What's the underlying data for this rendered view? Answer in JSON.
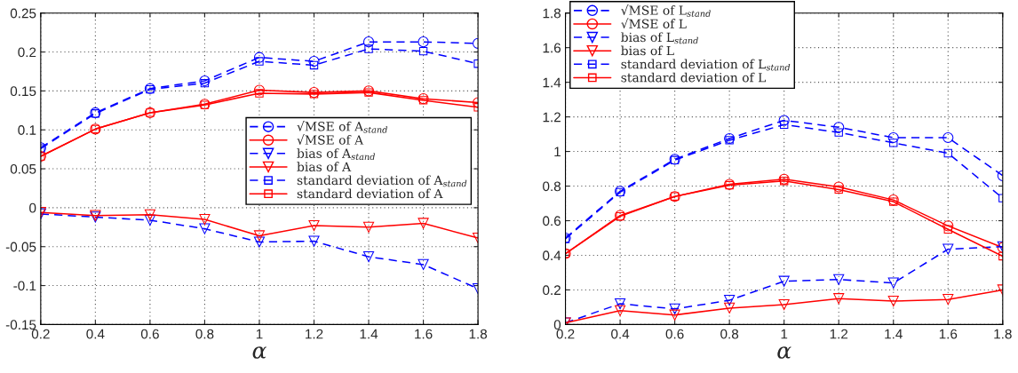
{
  "chart_data": [
    {
      "type": "line",
      "xlabel": "α",
      "x": [
        0.2,
        0.4,
        0.6,
        0.8,
        1,
        1.2,
        1.4,
        1.6,
        1.8
      ],
      "xlim": [
        0.2,
        1.8
      ],
      "xticks": [
        0.2,
        0.4,
        0.6,
        0.8,
        1,
        1.2,
        1.4,
        1.6,
        1.8
      ],
      "ylim": [
        -0.15,
        0.25
      ],
      "yticks": [
        -0.15,
        -0.1,
        -0.05,
        0,
        0.05,
        0.1,
        0.15,
        0.2,
        0.25
      ],
      "grid": true,
      "legend": "center right",
      "series": [
        {
          "name": "√MSE of A$_{stand}$",
          "color": "#0000ff",
          "marker": "circle",
          "line_style": "dashed",
          "values": [
            0.077,
            0.122,
            0.153,
            0.163,
            0.193,
            0.188,
            0.213,
            0.213,
            0.211
          ]
        },
        {
          "name": "√MSE of A",
          "color": "#ff0000",
          "marker": "circle",
          "line_style": "solid",
          "values": [
            0.066,
            0.101,
            0.122,
            0.133,
            0.151,
            0.148,
            0.15,
            0.14,
            0.135
          ]
        },
        {
          "name": "bias of A$_{stand}$",
          "color": "#0000ff",
          "marker": "triangle",
          "line_style": "dashed",
          "values": [
            -0.008,
            -0.012,
            -0.016,
            -0.027,
            -0.044,
            -0.043,
            -0.063,
            -0.073,
            -0.104
          ]
        },
        {
          "name": "bias of A",
          "color": "#ff0000",
          "marker": "triangle",
          "line_style": "solid",
          "values": [
            -0.006,
            -0.01,
            -0.009,
            -0.015,
            -0.036,
            -0.023,
            -0.025,
            -0.02,
            -0.039
          ]
        },
        {
          "name": "standard deviation of A$_{stand}$",
          "color": "#0000ff",
          "marker": "square",
          "line_style": "dashed",
          "values": [
            0.076,
            0.121,
            0.152,
            0.16,
            0.188,
            0.183,
            0.204,
            0.201,
            0.185
          ]
        },
        {
          "name": "standard deviation of A",
          "color": "#ff0000",
          "marker": "square",
          "line_style": "solid",
          "values": [
            0.066,
            0.101,
            0.122,
            0.132,
            0.147,
            0.146,
            0.148,
            0.138,
            0.129
          ]
        }
      ]
    },
    {
      "type": "line",
      "xlabel": "α",
      "x": [
        0.2,
        0.4,
        0.6,
        0.8,
        1,
        1.2,
        1.4,
        1.6,
        1.8
      ],
      "xlim": [
        0.2,
        1.8
      ],
      "xticks": [
        0.2,
        0.4,
        0.6,
        0.8,
        1,
        1.2,
        1.4,
        1.6,
        1.8
      ],
      "ylim": [
        0,
        1.8
      ],
      "yticks": [
        0,
        0.2,
        0.4,
        0.6,
        0.8,
        1,
        1.2,
        1.4,
        1.6,
        1.8
      ],
      "grid": true,
      "legend": "top left",
      "series": [
        {
          "name": "√MSE of L$_{stand}$",
          "color": "#0000ff",
          "marker": "circle",
          "line_style": "dashed",
          "values": [
            0.5,
            0.77,
            0.955,
            1.075,
            1.18,
            1.14,
            1.08,
            1.08,
            0.86
          ]
        },
        {
          "name": "√MSE of L",
          "color": "#ff0000",
          "marker": "circle",
          "line_style": "solid",
          "values": [
            0.41,
            0.63,
            0.74,
            0.81,
            0.84,
            0.795,
            0.72,
            0.57,
            0.445
          ]
        },
        {
          "name": "bias of L$_{stand}$",
          "color": "#0000ff",
          "marker": "triangle",
          "line_style": "dashed",
          "values": [
            0.01,
            0.12,
            0.09,
            0.14,
            0.25,
            0.26,
            0.24,
            0.435,
            0.45
          ]
        },
        {
          "name": "bias of L",
          "color": "#ff0000",
          "marker": "triangle",
          "line_style": "solid",
          "values": [
            0.01,
            0.08,
            0.055,
            0.095,
            0.115,
            0.15,
            0.135,
            0.145,
            0.2
          ]
        },
        {
          "name": "standard deviation of L$_{stand}$",
          "color": "#0000ff",
          "marker": "square",
          "line_style": "dashed",
          "values": [
            0.495,
            0.765,
            0.95,
            1.065,
            1.155,
            1.11,
            1.05,
            0.99,
            0.73
          ]
        },
        {
          "name": "standard deviation of L",
          "color": "#ff0000",
          "marker": "square",
          "line_style": "solid",
          "values": [
            0.41,
            0.625,
            0.74,
            0.805,
            0.83,
            0.78,
            0.71,
            0.55,
            0.395
          ]
        }
      ]
    }
  ]
}
